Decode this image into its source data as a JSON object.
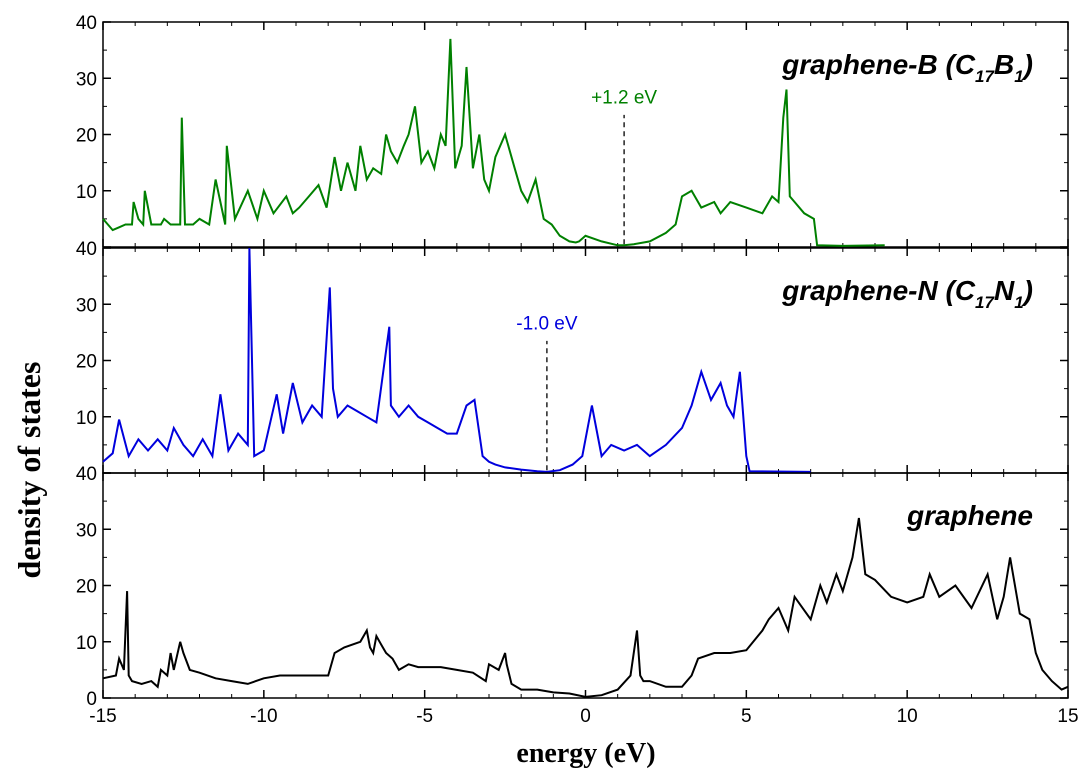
{
  "chart_data": {
    "type": "line",
    "xlabel": "energy (eV)",
    "ylabel": "density of states",
    "xlim": [
      -15,
      15
    ],
    "ylim": [
      0,
      40
    ],
    "x_ticks": [
      "-15",
      "-10",
      "-5",
      "0",
      "5",
      "10",
      "15"
    ],
    "y_ticks": [
      "0",
      "10",
      "20",
      "30",
      "40"
    ],
    "panels": [
      {
        "title_main": "graphene-B (C",
        "title_sub1": "17",
        "title_mid": "B",
        "title_sub2": "1",
        "title_end": ")",
        "color": "#008000",
        "annotation": {
          "text": "+1.2 eV",
          "x": 1.2
        },
        "series": {
          "x": [
            -15,
            -14.7,
            -14.5,
            -14.3,
            -14.1,
            -14.05,
            -13.9,
            -13.75,
            -13.7,
            -13.5,
            -13.2,
            -13.1,
            -12.9,
            -12.6,
            -12.55,
            -12.45,
            -12.2,
            -12,
            -11.7,
            -11.5,
            -11.2,
            -11.15,
            -10.9,
            -10.5,
            -10.2,
            -10,
            -9.7,
            -9.3,
            -9.1,
            -8.9,
            -8.6,
            -8.3,
            -8.05,
            -7.8,
            -7.6,
            -7.4,
            -7.15,
            -7,
            -6.8,
            -6.6,
            -6.35,
            -6.2,
            -6.05,
            -5.85,
            -5.65,
            -5.5,
            -5.3,
            -5.1,
            -4.9,
            -4.7,
            -4.5,
            -4.35,
            -4.2,
            -4.05,
            -3.85,
            -3.7,
            -3.5,
            -3.3,
            -3.15,
            -3,
            -2.8,
            -2.5,
            -2.2,
            -2,
            -1.8,
            -1.55,
            -1.3,
            -1.05,
            -0.8,
            -0.5,
            -0.3,
            -0.2,
            0,
            0.5,
            1,
            1.2,
            1.5,
            2,
            2.5,
            2.8,
            3,
            3.3,
            3.6,
            4,
            4.2,
            4.5,
            5,
            5.5,
            5.8,
            6,
            6.15,
            6.25,
            6.35,
            6.5,
            6.8,
            7.1,
            7.2,
            8,
            9.3
          ],
          "y": [
            5,
            3,
            3.5,
            4,
            4,
            8,
            5,
            4,
            10,
            4,
            4,
            5,
            4,
            4,
            23,
            4,
            4,
            5,
            4,
            12,
            4,
            18,
            5,
            10,
            5,
            10,
            6,
            9,
            6,
            7,
            9,
            11,
            7,
            16,
            10,
            15,
            10,
            18,
            12,
            14,
            13,
            20,
            17,
            15,
            18,
            20,
            25,
            15,
            17,
            14,
            20,
            18,
            37,
            14,
            18,
            32,
            14,
            20,
            12,
            10,
            16,
            20,
            14,
            10,
            8,
            12,
            5,
            4,
            2,
            1,
            0.8,
            1,
            2,
            1,
            0.3,
            0.3,
            0.5,
            1,
            2.5,
            4,
            9,
            10,
            7,
            8,
            6,
            8,
            7,
            6,
            9,
            8,
            23,
            28,
            9,
            8,
            6,
            5,
            0.3,
            0.2,
            0.3
          ]
        }
      },
      {
        "title_main": "graphene-N (C",
        "title_sub1": "17",
        "title_mid": "N",
        "title_sub2": "1",
        "title_end": ")",
        "color": "#0000dd",
        "annotation": {
          "text": "-1.0 eV",
          "x": -1.2
        },
        "series": {
          "x": [
            -15,
            -14.7,
            -14.5,
            -14.2,
            -13.9,
            -13.6,
            -13.3,
            -13,
            -12.8,
            -12.5,
            -12.2,
            -11.9,
            -11.6,
            -11.35,
            -11.1,
            -10.8,
            -10.5,
            -10.45,
            -10.3,
            -10,
            -9.6,
            -9.4,
            -9.1,
            -8.8,
            -8.5,
            -8.2,
            -7.95,
            -7.85,
            -7.7,
            -7.4,
            -7.1,
            -6.8,
            -6.5,
            -6.1,
            -6.05,
            -5.8,
            -5.5,
            -5.2,
            -4.9,
            -4.6,
            -4.3,
            -4,
            -3.7,
            -3.45,
            -3.2,
            -3,
            -2.8,
            -2.5,
            -2,
            -1.5,
            -1.2,
            -0.8,
            -0.4,
            -0.1,
            0.2,
            0.5,
            0.8,
            1.2,
            1.6,
            2,
            2.5,
            3,
            3.3,
            3.6,
            3.9,
            4.2,
            4.4,
            4.6,
            4.8,
            5,
            5.1,
            7
          ],
          "y": [
            2,
            3.5,
            9.5,
            3,
            6,
            4,
            6,
            4,
            8,
            5,
            3,
            6,
            3,
            14,
            4,
            7,
            5,
            40,
            3,
            4,
            14,
            7,
            16,
            9,
            12,
            10,
            33,
            15,
            10,
            12,
            11,
            10,
            9,
            26,
            12,
            10,
            12,
            10,
            9,
            8,
            7,
            7,
            12,
            13,
            3,
            2,
            1.5,
            1,
            0.6,
            0.3,
            0.2,
            0.5,
            1.5,
            3,
            12,
            3,
            5,
            4,
            5,
            3,
            5,
            8,
            12,
            18,
            13,
            16,
            12,
            10,
            18,
            3,
            0.3,
            0.2
          ]
        }
      },
      {
        "title_main": "graphene",
        "title_sub1": "",
        "title_mid": "",
        "title_sub2": "",
        "title_end": "",
        "color": "#000000",
        "annotation": null,
        "series": {
          "x": [
            -15,
            -14.6,
            -14.5,
            -14.35,
            -14.25,
            -14.2,
            -14.1,
            -13.8,
            -13.5,
            -13.3,
            -13.2,
            -13,
            -12.9,
            -12.8,
            -12.6,
            -12.5,
            -12.3,
            -12,
            -11.5,
            -11,
            -10.5,
            -10,
            -9.5,
            -9,
            -8.5,
            -8,
            -7.8,
            -7.5,
            -7,
            -6.8,
            -6.7,
            -6.6,
            -6.5,
            -6.3,
            -6.2,
            -6,
            -5.8,
            -5.5,
            -5.2,
            -5,
            -4.5,
            -4,
            -3.5,
            -3.1,
            -3,
            -2.7,
            -2.5,
            -2.45,
            -2.3,
            -2,
            -1.5,
            -1,
            -0.5,
            0,
            0.5,
            1,
            1.4,
            1.6,
            1.7,
            1.8,
            2,
            2.5,
            3,
            3.3,
            3.5,
            4,
            4.5,
            5,
            5.5,
            5.7,
            6,
            6.3,
            6.5,
            7,
            7.3,
            7.5,
            7.8,
            8,
            8.3,
            8.5,
            8.7,
            9,
            9.5,
            10,
            10.5,
            10.7,
            11,
            11.5,
            12,
            12.5,
            12.8,
            13,
            13.2,
            13.5,
            13.8,
            14,
            14.2,
            14.5,
            14.8,
            15
          ],
          "y": [
            3.5,
            4,
            7,
            5,
            19,
            4,
            3,
            2.5,
            3,
            2,
            5,
            4,
            8,
            5,
            10,
            8,
            5,
            4.5,
            3.5,
            3,
            2.5,
            3.5,
            4,
            4,
            4,
            4,
            8,
            9,
            10,
            12,
            9,
            8,
            11,
            9,
            8,
            7,
            5,
            6,
            5.5,
            5.5,
            5.5,
            5,
            4.5,
            3,
            6,
            5,
            8,
            6,
            2.5,
            1.5,
            1.5,
            1,
            0.8,
            0.2,
            0.5,
            1.5,
            4,
            12,
            4,
            3,
            3,
            2,
            2,
            4,
            7,
            8,
            8,
            8.5,
            12,
            14,
            16,
            12,
            18,
            14,
            20,
            17,
            22,
            19,
            25,
            32,
            22,
            21,
            18,
            17,
            18,
            22,
            18,
            20,
            16,
            22,
            14,
            18,
            25,
            15,
            14,
            8,
            5,
            3,
            1.5,
            2
          ]
        }
      }
    ]
  }
}
